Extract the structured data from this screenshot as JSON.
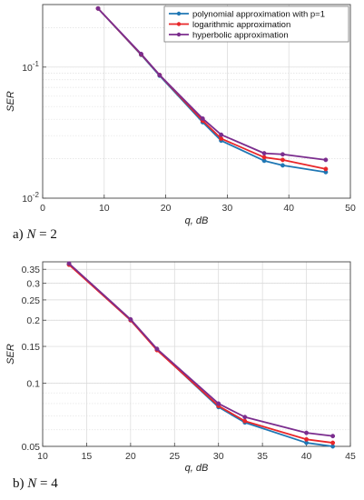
{
  "chart_data": [
    {
      "type": "line",
      "caption_prefix": "a)",
      "caption_var": "N",
      "caption_rest": " = 2",
      "xlabel": "q, dB",
      "ylabel": "SER",
      "xlim": [
        0,
        50
      ],
      "ylim": [
        0.01,
        0.3
      ],
      "y_scale": "log",
      "grid": true,
      "legend_position": "top-right",
      "x_ticks": [
        0,
        10,
        20,
        30,
        40,
        50
      ],
      "y_major_ticks": [
        {
          "value": 0.1,
          "base": "10",
          "exp": "-1"
        },
        {
          "value": 0.01,
          "base": "10",
          "exp": "-2"
        }
      ],
      "series": [
        {
          "name": "polynomial approximation with p=1",
          "color": "#1f77b4",
          "x": [
            9,
            16,
            19,
            26,
            29,
            36,
            39,
            46
          ],
          "y": [
            0.28,
            0.124,
            0.086,
            0.038,
            0.0275,
            0.0193,
            0.0178,
            0.0158
          ]
        },
        {
          "name": "logarithmic approximation",
          "color": "#e8272a",
          "x": [
            9,
            16,
            19,
            26,
            29,
            36,
            39,
            46
          ],
          "y": [
            0.28,
            0.125,
            0.087,
            0.039,
            0.0285,
            0.0205,
            0.0196,
            0.0167
          ]
        },
        {
          "name": "hyperbolic approximation",
          "color": "#7b2d8e",
          "x": [
            9,
            16,
            19,
            26,
            29,
            36,
            39,
            46
          ],
          "y": [
            0.28,
            0.126,
            0.087,
            0.0405,
            0.0305,
            0.022,
            0.0216,
            0.0196
          ]
        }
      ]
    },
    {
      "type": "line",
      "caption_prefix": "b)",
      "caption_var": "N",
      "caption_rest": " = 4",
      "xlabel": "q, dB",
      "ylabel": "SER",
      "xlim": [
        10,
        45
      ],
      "ylim": [
        0.05,
        0.38
      ],
      "y_scale": "log",
      "grid": true,
      "x_ticks": [
        10,
        15,
        20,
        25,
        30,
        35,
        40,
        45
      ],
      "y_ticks": [
        0.05,
        0.1,
        0.15,
        0.2,
        0.25,
        0.3,
        0.35
      ],
      "series": [
        {
          "color": "#1f77b4",
          "x": [
            13,
            20,
            23,
            30,
            33,
            40,
            43
          ],
          "y": [
            0.37,
            0.2,
            0.145,
            0.077,
            0.065,
            0.052,
            0.05
          ]
        },
        {
          "color": "#e8272a",
          "x": [
            13,
            20,
            23,
            30,
            33,
            40,
            43
          ],
          "y": [
            0.368,
            0.2,
            0.144,
            0.078,
            0.066,
            0.054,
            0.052
          ]
        },
        {
          "color": "#7b2d8e",
          "x": [
            13,
            20,
            23,
            30,
            33,
            40,
            43
          ],
          "y": [
            0.373,
            0.202,
            0.146,
            0.08,
            0.069,
            0.058,
            0.056
          ]
        }
      ]
    }
  ]
}
